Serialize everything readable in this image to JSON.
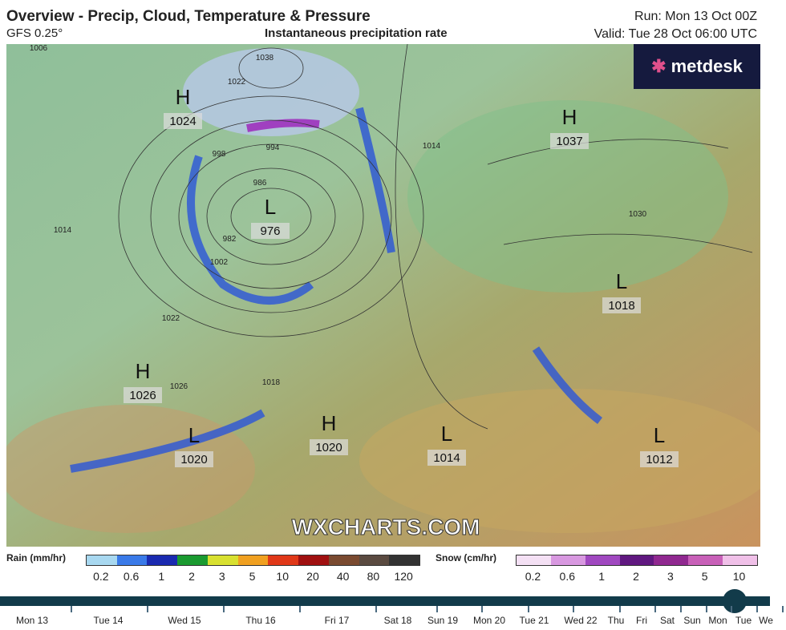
{
  "header": {
    "title": "Overview - Precip, Cloud, Temperature & Pressure",
    "model": "GFS 0.25°",
    "subtitle": "Instantaneous precipitation rate",
    "run": "Run: Mon 13 Oct 00Z",
    "valid": "Valid: Tue 28 Oct 06:00 UTC"
  },
  "logo": "metdesk",
  "watermark": "WXCHARTS.COM",
  "pressure_centers": [
    {
      "type": "H",
      "value": 1024
    },
    {
      "type": "L",
      "value": 976
    },
    {
      "type": "H",
      "value": 1037
    },
    {
      "type": "L",
      "value": 1018
    },
    {
      "type": "H",
      "value": 1026
    },
    {
      "type": "L",
      "value": 1020
    },
    {
      "type": "H",
      "value": 1020
    },
    {
      "type": "L",
      "value": 1014
    },
    {
      "type": "L",
      "value": 1012
    }
  ],
  "isobar_labels": [
    1006,
    1038,
    1022,
    998,
    994,
    986,
    982,
    1002,
    1014,
    1022,
    1026,
    1030,
    1014,
    1018
  ],
  "rain_legend": {
    "label": "Rain (mm/hr)",
    "ticks": [
      0.2,
      0.6,
      1,
      2,
      3,
      5,
      10,
      20,
      40,
      80,
      120
    ]
  },
  "snow_legend": {
    "label": "Snow (cm/hr)",
    "ticks": [
      0.2,
      0.6,
      1,
      2,
      3,
      5,
      10
    ]
  },
  "timeline": [
    "Mon 13",
    "Tue 14",
    "Wed 15",
    "Thu 16",
    "Fri 17",
    "Sat 18",
    "Sun 19",
    "Mon 20",
    "Tue 21",
    "Wed 22",
    "Thu",
    "Fri",
    "Sat",
    "Sun",
    "Mon",
    "Tue",
    "We"
  ]
}
